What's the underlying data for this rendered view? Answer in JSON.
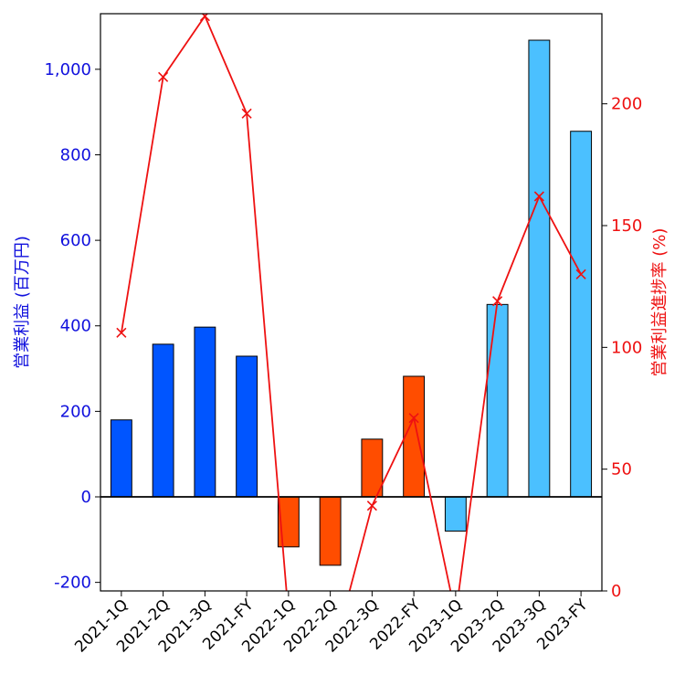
{
  "chart_data": {
    "type": "bar+line",
    "categories": [
      "2021-1Q",
      "2021-2Q",
      "2021-3Q",
      "2021-FY",
      "2022-1Q",
      "2022-2Q",
      "2022-3Q",
      "2022-FY",
      "2023-1Q",
      "2023-2Q",
      "2023-3Q",
      "2023-FY"
    ],
    "bars": {
      "values": [
        180,
        357,
        397,
        329,
        -117,
        -160,
        135,
        282,
        -80,
        450,
        1068,
        855
      ],
      "colors": [
        "#0055ff",
        "#0055ff",
        "#0055ff",
        "#0055ff",
        "#ff4d00",
        "#ff4d00",
        "#ff4d00",
        "#ff4d00",
        "#4bc0ff",
        "#4bc0ff",
        "#4bc0ff",
        "#4bc0ff"
      ],
      "edge_color": "#000000"
    },
    "line": {
      "values": [
        106,
        211,
        236,
        196,
        -10,
        -30,
        35,
        71,
        -10,
        119,
        162,
        130
      ],
      "color": "#ee1111",
      "marker": "x"
    },
    "left_axis": {
      "label": "営業利益 (百万円)",
      "color": "#1111dd",
      "ylim": [
        -220,
        1130
      ],
      "ticks": [
        -200,
        0,
        200,
        400,
        600,
        800,
        1000
      ],
      "tick_labels": [
        "-200",
        "0",
        "200",
        "400",
        "600",
        "800",
        "1,000"
      ]
    },
    "right_axis": {
      "label": "営業利益進捗率 (%)",
      "color": "#ee1111",
      "ylim": [
        0,
        237
      ],
      "ticks": [
        0,
        50,
        100,
        150,
        200
      ],
      "tick_labels": [
        "0",
        "50",
        "100",
        "150",
        "200"
      ]
    }
  }
}
